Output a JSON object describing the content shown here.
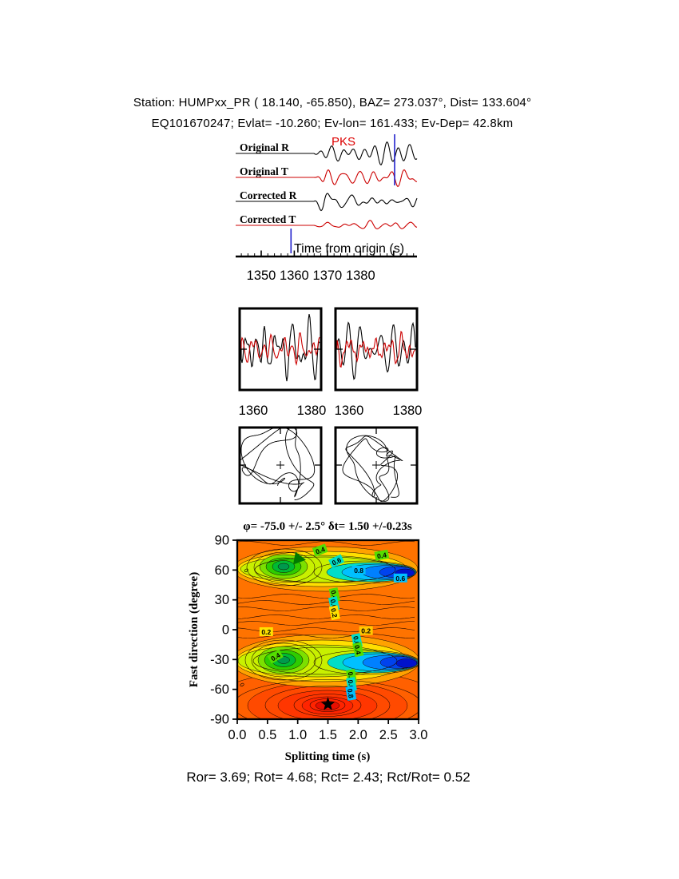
{
  "header": {
    "line1": "Station: HUMPxx_PR ( 18.140, -65.850), BAZ= 273.037°, Dist= 133.604°",
    "line2": "EQ101670247; Evlat= -10.260; Ev-lon= 161.433; Ev-Dep= 42.8km"
  },
  "waveform_panel": {
    "phase_label": "PKS",
    "phase_label_color": "#dd0000",
    "xlabel": "Time from origin (s)",
    "xticks": [
      "1350",
      "1360",
      "1370",
      "1380"
    ],
    "window_markers_s": [
      1359,
      1390.3
    ],
    "window_marker_color": "#2222cc",
    "traces": [
      {
        "label": "Original R",
        "color": "#000000"
      },
      {
        "label": "Original T",
        "color": "#cc0000"
      },
      {
        "label": "Corrected R",
        "color": "#000000"
      },
      {
        "label": "Corrected T",
        "color": "#cc0000"
      }
    ]
  },
  "zoom_panels": {
    "left_xticks": [
      "1360",
      "1380"
    ],
    "right_xticks": [
      "1360",
      "1380"
    ]
  },
  "contour": {
    "title": "φ= -75.0 +/- 2.5° δt= 1.50 +/-0.23s",
    "xlabel": "Splitting time (s)",
    "ylabel": "Fast direction (degree)",
    "xticks": [
      "0.0",
      "0.5",
      "1.0",
      "1.5",
      "2.0",
      "2.5",
      "3.0"
    ],
    "yticks": [
      "90",
      "60",
      "30",
      "0",
      "-30",
      "-60",
      "-90"
    ],
    "best_fit_marker": {
      "s": 1.5,
      "deg": -75
    },
    "triangle_marker": {
      "s": 1.03,
      "deg": 71
    },
    "labels": [
      {
        "text": "0.4",
        "s": 1.37,
        "deg": 80,
        "rot": -20,
        "bg": "#55dd00"
      },
      {
        "text": "0.6",
        "s": 1.64,
        "deg": 69,
        "rot": -25,
        "bg": "#00ddc8"
      },
      {
        "text": "0.4",
        "s": 2.39,
        "deg": 75,
        "rot": -10,
        "bg": "#55dd00"
      },
      {
        "text": "0.8",
        "s": 2.01,
        "deg": 60,
        "rot": 0,
        "bg": "#00c0ff"
      },
      {
        "text": "0.6",
        "s": 2.7,
        "deg": 52,
        "rot": 0,
        "bg": "#00c0ff"
      },
      {
        "text": "0.4",
        "s": 1.61,
        "deg": 35,
        "rot": 78,
        "bg": "#55dd00"
      },
      {
        "text": "0.6",
        "s": 1.6,
        "deg": 26,
        "rot": 78,
        "bg": "#00ddc8"
      },
      {
        "text": "0.2",
        "s": 1.61,
        "deg": 17,
        "rot": 78,
        "bg": "#ffe000"
      },
      {
        "text": "0.2",
        "s": 0.48,
        "deg": -2,
        "rot": 0,
        "bg": "#ffe000"
      },
      {
        "text": "0.2",
        "s": 2.13,
        "deg": -1,
        "rot": 0,
        "bg": "#ffc800"
      },
      {
        "text": "0.4",
        "s": 0.63,
        "deg": -27,
        "rot": -30,
        "bg": "#55dd00"
      },
      {
        "text": "0.6",
        "s": 1.98,
        "deg": -11,
        "rot": 78,
        "bg": "#00ddc8"
      },
      {
        "text": "0.4",
        "s": 2.0,
        "deg": -20,
        "rot": 78,
        "bg": "#55dd00"
      },
      {
        "text": "0.4",
        "s": 1.89,
        "deg": -47,
        "rot": 80,
        "bg": "#55dd00"
      },
      {
        "text": "0.6",
        "s": 1.89,
        "deg": -55,
        "rot": 80,
        "bg": "#00ddc8"
      },
      {
        "text": "0.8",
        "s": 1.88,
        "deg": -64,
        "rot": 80,
        "bg": "#00c0ff"
      },
      {
        "text": "0",
        "s": 0.16,
        "deg": 60,
        "rot": 60,
        "bg": null
      },
      {
        "text": "0",
        "s": 0.09,
        "deg": -55,
        "rot": 60,
        "bg": null
      }
    ]
  },
  "footer": {
    "text": "Ror= 3.69; Rot= 4.68; Rct= 2.43; Rct/Rot= 0.52"
  },
  "footer_metrics": {
    "Ror": 3.69,
    "Rot": 4.68,
    "Rct": 2.43,
    "Rct_over_Rot": 0.52
  },
  "chart_data": [
    {
      "type": "line",
      "panel": "seismograms",
      "xlabel": "Time from origin (s)",
      "xlim": [
        1342,
        1397
      ],
      "xticks": [
        1350,
        1360,
        1370,
        1380
      ],
      "series": [
        {
          "name": "Original R",
          "color": "#000000"
        },
        {
          "name": "Original T",
          "color": "#cc0000"
        },
        {
          "name": "Corrected R",
          "color": "#000000"
        },
        {
          "name": "Corrected T",
          "color": "#cc0000"
        }
      ],
      "annotations": [
        {
          "text": "PKS",
          "color": "#dd0000",
          "x": 1372
        }
      ],
      "window_markers_s": [
        1359,
        1390.3
      ]
    },
    {
      "type": "line",
      "panel": "windowed-pairs",
      "xticks": [
        1360,
        1380
      ],
      "xlim": [
        1355,
        1384
      ],
      "series": [
        {
          "name": "R",
          "color": "#000000"
        },
        {
          "name": "T",
          "color": "#cc0000"
        }
      ]
    },
    {
      "type": "scatter",
      "panel": "particle-motion",
      "description": "horizontal particle motion, original (left) and corrected (right)"
    },
    {
      "type": "heatmap",
      "panel": "error-surface",
      "title": "φ= -75.0 +/- 2.5° δt= 1.50 +/-0.23s",
      "xlabel": "Splitting time (s)",
      "ylabel": "Fast direction (degree)",
      "xlim": [
        0,
        3
      ],
      "ylim": [
        -90,
        90
      ],
      "xticks": [
        0.0,
        0.5,
        1.0,
        1.5,
        2.0,
        2.5,
        3.0
      ],
      "yticks": [
        90,
        60,
        30,
        0,
        -30,
        -60,
        -90
      ],
      "contour_levels": [
        0.2,
        0.4,
        0.6,
        0.8
      ],
      "best_fit": {
        "fast_direction_deg": -75.0,
        "fast_direction_err_deg": 2.5,
        "splitting_time_s": 1.5,
        "splitting_time_err_s": 0.23
      },
      "local_minima": [
        {
          "dt_s": 0.8,
          "phi_deg": 66
        },
        {
          "dt_s": 2.5,
          "phi_deg": 57
        },
        {
          "dt_s": 0.8,
          "phi_deg": -31
        },
        {
          "dt_s": 2.5,
          "phi_deg": -34
        }
      ]
    }
  ]
}
